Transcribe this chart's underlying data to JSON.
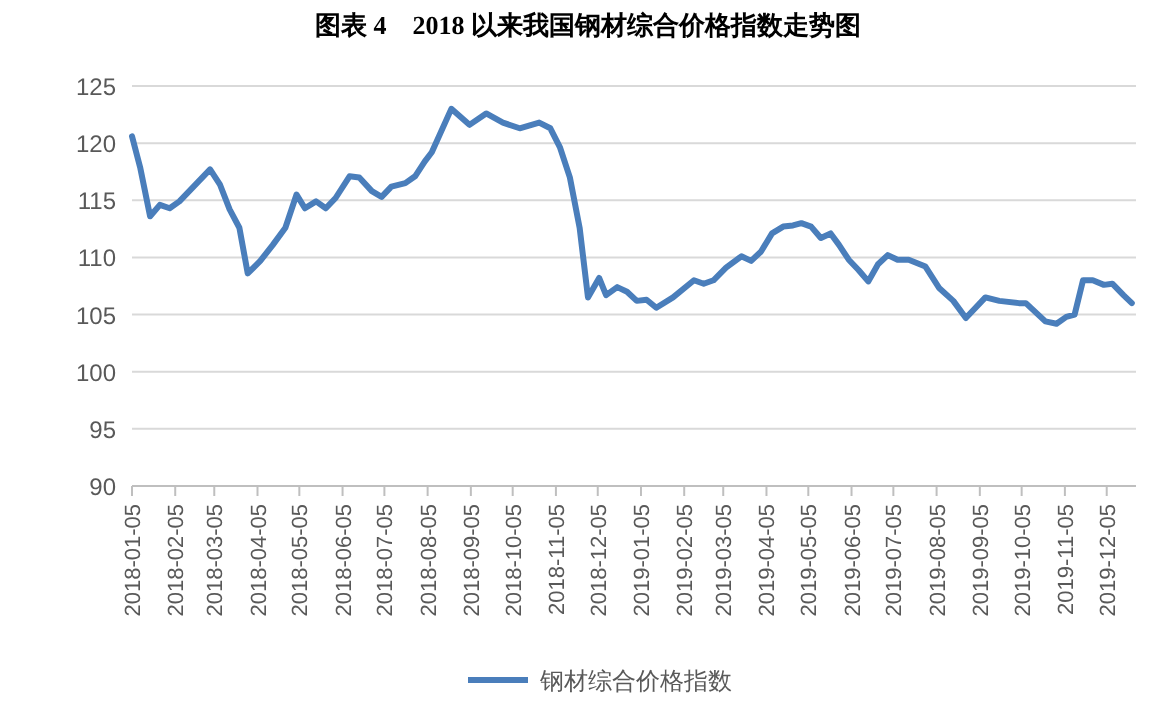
{
  "chart_data": {
    "type": "line",
    "title": "图表 4　2018 以来我国钢材综合价格指数走势图",
    "x": [
      "2018-01-05",
      "2018-01-11",
      "2018-01-18",
      "2018-01-25",
      "2018-02-01",
      "2018-02-08",
      "2018-03-02",
      "2018-03-09",
      "2018-03-16",
      "2018-03-23",
      "2018-03-29",
      "2018-04-07",
      "2018-04-16",
      "2018-04-25",
      "2018-05-03",
      "2018-05-09",
      "2018-05-17",
      "2018-05-24",
      "2018-05-31",
      "2018-06-10",
      "2018-06-17",
      "2018-06-26",
      "2018-07-03",
      "2018-07-10",
      "2018-07-20",
      "2018-07-27",
      "2018-08-03",
      "2018-08-08",
      "2018-08-22",
      "2018-09-04",
      "2018-09-16",
      "2018-09-28",
      "2018-10-10",
      "2018-10-24",
      "2018-11-01",
      "2018-11-08",
      "2018-11-15",
      "2018-11-22",
      "2018-11-28",
      "2018-12-06",
      "2018-12-11",
      "2018-12-19",
      "2018-12-26",
      "2019-01-02",
      "2019-01-09",
      "2019-01-16",
      "2019-01-28",
      "2019-02-12",
      "2019-02-19",
      "2019-02-26",
      "2019-03-07",
      "2019-03-18",
      "2019-03-25",
      "2019-04-01",
      "2019-04-09",
      "2019-04-17",
      "2019-04-24",
      "2019-04-30",
      "2019-05-07",
      "2019-05-14",
      "2019-05-21",
      "2019-05-27",
      "2019-06-03",
      "2019-06-10",
      "2019-06-17",
      "2019-06-24",
      "2019-07-01",
      "2019-07-08",
      "2019-07-16",
      "2019-07-28",
      "2019-08-07",
      "2019-08-17",
      "2019-08-26",
      "2019-09-09",
      "2019-09-19",
      "2019-10-03",
      "2019-10-08",
      "2019-10-22",
      "2019-10-30",
      "2019-11-06",
      "2019-11-12",
      "2019-11-18",
      "2019-11-25",
      "2019-12-03",
      "2019-12-09",
      "2019-12-17",
      "2019-12-23"
    ],
    "series": [
      {
        "name": "钢材综合价格指数",
        "color": "#4a7ebb",
        "values": [
          120.6,
          117.8,
          113.6,
          114.6,
          114.3,
          114.9,
          117.7,
          116.4,
          114.2,
          112.6,
          108.6,
          109.7,
          111.1,
          112.6,
          115.5,
          114.3,
          114.9,
          114.3,
          115.2,
          117.1,
          117.0,
          115.8,
          115.3,
          116.2,
          116.5,
          117.1,
          118.4,
          119.2,
          123.0,
          121.6,
          122.6,
          121.8,
          121.3,
          121.8,
          121.3,
          119.6,
          117.0,
          112.6,
          106.5,
          108.2,
          106.7,
          107.4,
          107.0,
          106.2,
          106.3,
          105.6,
          106.5,
          108.0,
          107.7,
          108.0,
          109.1,
          110.1,
          109.7,
          110.5,
          112.1,
          112.7,
          112.8,
          113.0,
          112.7,
          111.7,
          112.1,
          111.1,
          109.8,
          108.9,
          107.9,
          109.4,
          110.2,
          109.8,
          109.8,
          109.2,
          107.3,
          106.2,
          104.7,
          106.5,
          106.2,
          106.0,
          106.0,
          104.4,
          104.2,
          104.8,
          105.0,
          108.0,
          108.0,
          107.6,
          107.7,
          106.7,
          106.0
        ]
      }
    ],
    "xlim": [
      "2018-01-05",
      "2019-12-26"
    ],
    "xticks": [
      "2018-01-05",
      "2018-02-05",
      "2018-03-05",
      "2018-04-05",
      "2018-05-05",
      "2018-06-05",
      "2018-07-05",
      "2018-08-05",
      "2018-09-05",
      "2018-10-05",
      "2018-11-05",
      "2018-12-05",
      "2019-01-05",
      "2019-02-05",
      "2019-03-05",
      "2019-04-05",
      "2019-05-05",
      "2019-06-05",
      "2019-07-05",
      "2019-08-05",
      "2019-09-05",
      "2019-10-05",
      "2019-11-05",
      "2019-12-05"
    ],
    "ylim": [
      90,
      125
    ],
    "yticks": [
      90,
      95,
      100,
      105,
      110,
      115,
      120,
      125
    ],
    "grid": "y",
    "legend": "bottom"
  }
}
